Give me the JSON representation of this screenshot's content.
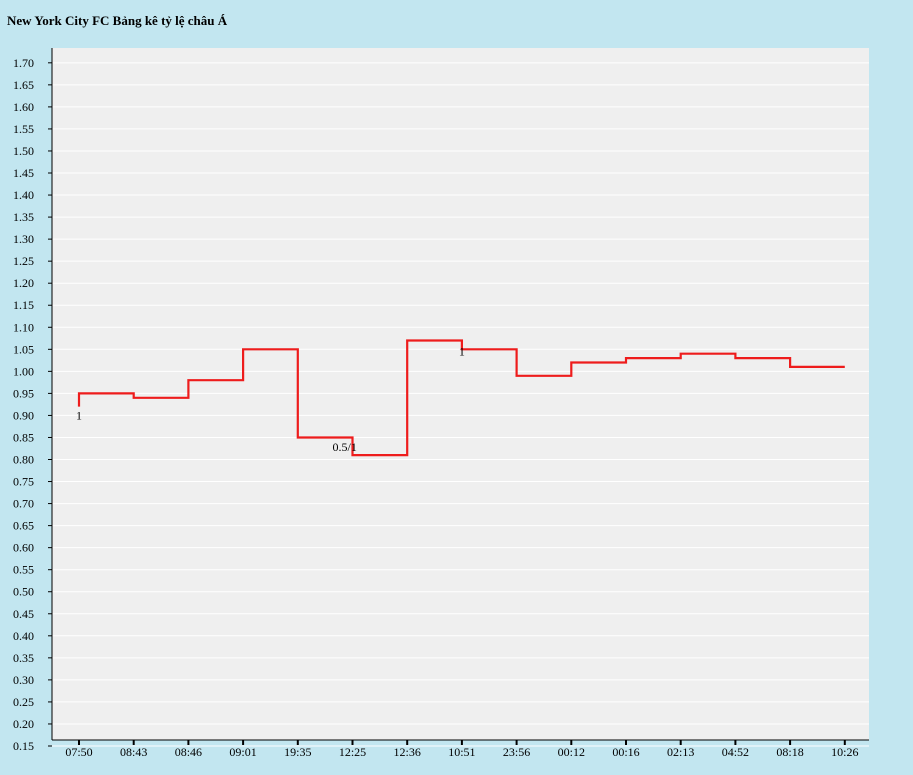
{
  "page": {
    "title": "New York City FC Bảng kê tỷ lệ châu Á",
    "background": "#c2e6f0"
  },
  "chart_data": {
    "type": "line",
    "title": "New York City FC Bảng kê tỷ lệ châu Á",
    "xlabel": "",
    "ylabel": "",
    "line_shape": "step",
    "ylim": [
      0.15,
      1.72
    ],
    "y_ticks": [
      "0.15",
      "0.20",
      "0.25",
      "0.30",
      "0.35",
      "0.40",
      "0.45",
      "0.50",
      "0.55",
      "0.60",
      "0.65",
      "0.70",
      "0.75",
      "0.80",
      "0.85",
      "0.90",
      "0.95",
      "1.00",
      "1.05",
      "1.10",
      "1.15",
      "1.20",
      "1.25",
      "1.30",
      "1.35",
      "1.40",
      "1.45",
      "1.50",
      "1.55",
      "1.60",
      "1.65",
      "1.70"
    ],
    "grid": true,
    "plot_background": "#efefef",
    "categories": [
      "07:50",
      "08:43",
      "08:46",
      "09:01",
      "19:35",
      "12:25",
      "12:36",
      "10:51",
      "23:56",
      "00:12",
      "00:16",
      "02:13",
      "04:52",
      "08:18",
      "10:26"
    ],
    "series": [
      {
        "color": "#ee1c1c",
        "values": [
          0.95,
          0.94,
          0.98,
          1.05,
          0.85,
          0.81,
          1.07,
          1.05,
          0.99,
          1.02,
          1.03,
          1.04,
          1.03,
          1.01,
          1.01
        ],
        "start_value": 0.92
      }
    ],
    "annotations": [
      {
        "text": "1",
        "category_index": 0
      },
      {
        "text": "0.5/1",
        "category_index": 5
      },
      {
        "text": "1",
        "category_index": 7
      }
    ]
  }
}
